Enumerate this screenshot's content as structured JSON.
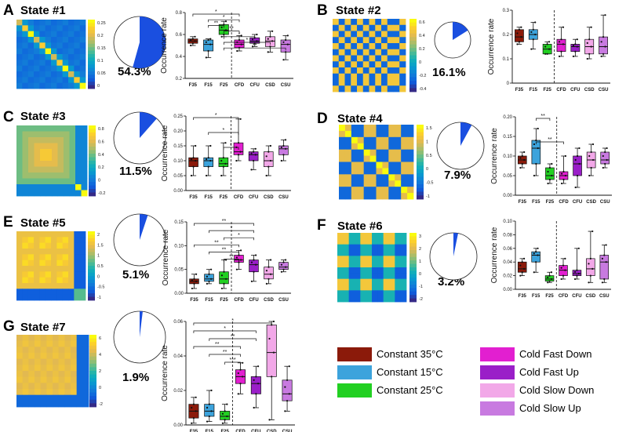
{
  "colors": {
    "F35": "#8b1a0a",
    "F15": "#3ca3dc",
    "F25": "#22d022",
    "CFD": "#e21fd0",
    "CFU": "#9a1fc8",
    "CSD": "#f2a8e8",
    "CSU": "#c87ae0"
  },
  "legend": [
    {
      "code": "F35",
      "label": "Constant  35°C"
    },
    {
      "code": "F15",
      "label": "Constant  15°C"
    },
    {
      "code": "F25",
      "label": "Constant  25°C"
    },
    {
      "code": "CFD",
      "label": "Cold Fast Down"
    },
    {
      "code": "CFU",
      "label": "Cold Fast Up"
    },
    {
      "code": "CSD",
      "label": "Cold Slow Down"
    },
    {
      "code": "CSU",
      "label": "Cold Slow Up"
    }
  ],
  "panels": [
    {
      "letter": "A",
      "title": "State #1",
      "percent_label": "54.3%",
      "fraction": 0.543,
      "colorbar_ticks": [
        "0.25",
        "0.2",
        "0.15",
        "0.1",
        "0.05",
        "0"
      ],
      "chart_data": {
        "type": "box",
        "ylabel": "Occurrence rate",
        "categories": [
          "F35",
          "F15",
          "F25",
          "CFD",
          "CFU",
          "CSD",
          "CSU"
        ],
        "ylim": [
          0.2,
          0.8
        ],
        "yticks": [
          "0.2",
          "0.4",
          "0.6",
          "0.8"
        ],
        "boxes": [
          {
            "min": 0.5,
            "q1": 0.52,
            "median": 0.54,
            "q3": 0.56,
            "max": 0.58
          },
          {
            "min": 0.39,
            "q1": 0.45,
            "median": 0.51,
            "q3": 0.55,
            "max": 0.56
          },
          {
            "min": 0.58,
            "q1": 0.6,
            "median": 0.64,
            "q3": 0.69,
            "max": 0.72
          },
          {
            "min": 0.45,
            "q1": 0.48,
            "median": 0.51,
            "q3": 0.55,
            "max": 0.59
          },
          {
            "min": 0.49,
            "q1": 0.52,
            "median": 0.54,
            "q3": 0.57,
            "max": 0.6
          },
          {
            "min": 0.44,
            "q1": 0.49,
            "median": 0.54,
            "q3": 0.58,
            "max": 0.63
          },
          {
            "min": 0.37,
            "q1": 0.44,
            "median": 0.51,
            "q3": 0.55,
            "max": 0.59
          }
        ],
        "significance": [
          {
            "from": 0,
            "to": 3,
            "label": "*"
          },
          {
            "from": 1,
            "to": 3,
            "label": "*"
          },
          {
            "from": 1,
            "to": 2,
            "label": "**"
          },
          {
            "from": 2,
            "to": 3,
            "label": "**"
          },
          {
            "from": 2,
            "to": 4,
            "label": "*"
          },
          {
            "from": 2,
            "to": 5,
            "label": "*"
          },
          {
            "from": 2,
            "to": 6,
            "label": "**"
          }
        ]
      }
    },
    {
      "letter": "B",
      "title": "State #2",
      "percent_label": "16.1%",
      "fraction": 0.161,
      "colorbar_ticks": [
        "0.6",
        "0.4",
        "0.2",
        "0",
        "-0.2",
        "-0.4"
      ],
      "chart_data": {
        "type": "box",
        "ylabel": "Occurrence rate",
        "categories": [
          "F35",
          "F15",
          "F25",
          "CFD",
          "CFU",
          "CSD",
          "CSU"
        ],
        "ylim": [
          0,
          0.3
        ],
        "yticks": [
          "0",
          "0.1",
          "0.2",
          "0.3"
        ],
        "boxes": [
          {
            "min": 0.16,
            "q1": 0.17,
            "median": 0.19,
            "q3": 0.22,
            "max": 0.23
          },
          {
            "min": 0.14,
            "q1": 0.18,
            "median": 0.2,
            "q3": 0.22,
            "max": 0.25
          },
          {
            "min": 0.12,
            "q1": 0.12,
            "median": 0.14,
            "q3": 0.16,
            "max": 0.17
          },
          {
            "min": 0.11,
            "q1": 0.13,
            "median": 0.16,
            "q3": 0.18,
            "max": 0.23
          },
          {
            "min": 0.11,
            "q1": 0.13,
            "median": 0.15,
            "q3": 0.16,
            "max": 0.18
          },
          {
            "min": 0.1,
            "q1": 0.12,
            "median": 0.15,
            "q3": 0.18,
            "max": 0.23
          },
          {
            "min": 0.11,
            "q1": 0.12,
            "median": 0.15,
            "q3": 0.19,
            "max": 0.28
          }
        ],
        "significance": []
      }
    },
    {
      "letter": "C",
      "title": "State #3",
      "percent_label": "11.5%",
      "fraction": 0.115,
      "colorbar_ticks": [
        "0.8",
        "0.6",
        "0.4",
        "0.2",
        "0",
        "-0.2"
      ],
      "chart_data": {
        "type": "box",
        "ylabel": "Occurrence rate",
        "categories": [
          "F35",
          "F15",
          "F25",
          "CFD",
          "CFU",
          "CSD",
          "CSU"
        ],
        "ylim": [
          0,
          0.25
        ],
        "yticks": [
          "0.00",
          "0.05",
          "0.10",
          "0.15",
          "0.20",
          "0.25"
        ],
        "boxes": [
          {
            "min": 0.05,
            "q1": 0.08,
            "median": 0.1,
            "q3": 0.11,
            "max": 0.15
          },
          {
            "min": 0.05,
            "q1": 0.08,
            "median": 0.1,
            "q3": 0.11,
            "max": 0.15
          },
          {
            "min": 0.05,
            "q1": 0.08,
            "median": 0.09,
            "q3": 0.11,
            "max": 0.16
          },
          {
            "min": 0.1,
            "q1": 0.12,
            "median": 0.13,
            "q3": 0.16,
            "max": 0.24
          },
          {
            "min": 0.07,
            "q1": 0.1,
            "median": 0.12,
            "q3": 0.13,
            "max": 0.14
          },
          {
            "min": 0.05,
            "q1": 0.08,
            "median": 0.1,
            "q3": 0.13,
            "max": 0.15
          },
          {
            "min": 0.1,
            "q1": 0.12,
            "median": 0.14,
            "q3": 0.15,
            "max": 0.17
          }
        ],
        "significance": [
          {
            "from": 0,
            "to": 3,
            "label": "*"
          },
          {
            "from": 1,
            "to": 3,
            "label": "*"
          },
          {
            "from": 2,
            "to": 3,
            "label": "*"
          }
        ]
      }
    },
    {
      "letter": "D",
      "title": "State #4",
      "percent_label": "7.9%",
      "fraction": 0.079,
      "colorbar_ticks": [
        "1.5",
        "1",
        "0.5",
        "0",
        "-0.5",
        "-1"
      ],
      "chart_data": {
        "type": "box",
        "ylabel": "Occurrence rate",
        "categories": [
          "F35",
          "F15",
          "F25",
          "CFD",
          "CFU",
          "CSD",
          "CSU"
        ],
        "ylim": [
          0,
          0.2
        ],
        "yticks": [
          "0.00",
          "0.05",
          "0.10",
          "0.15",
          "0.20"
        ],
        "boxes": [
          {
            "min": 0.07,
            "q1": 0.08,
            "median": 0.09,
            "q3": 0.1,
            "max": 0.11
          },
          {
            "min": 0.05,
            "q1": 0.08,
            "median": 0.12,
            "q3": 0.14,
            "max": 0.17
          },
          {
            "min": 0.03,
            "q1": 0.04,
            "median": 0.05,
            "q3": 0.07,
            "max": 0.08
          },
          {
            "min": 0.03,
            "q1": 0.04,
            "median": 0.05,
            "q3": 0.06,
            "max": 0.1
          },
          {
            "min": 0.02,
            "q1": 0.05,
            "median": 0.08,
            "q3": 0.1,
            "max": 0.12
          },
          {
            "min": 0.05,
            "q1": 0.07,
            "median": 0.09,
            "q3": 0.11,
            "max": 0.13
          },
          {
            "min": 0.07,
            "q1": 0.08,
            "median": 0.09,
            "q3": 0.11,
            "max": 0.12
          }
        ],
        "significance": [
          {
            "from": 1,
            "to": 2,
            "label": "**"
          },
          {
            "from": 1,
            "to": 3,
            "label": "**"
          }
        ]
      }
    },
    {
      "letter": "E",
      "title": "State #5",
      "percent_label": "5.1%",
      "fraction": 0.051,
      "colorbar_ticks": [
        "2",
        "1.5",
        "1",
        "0.5",
        "0",
        "-0.5",
        "-1"
      ],
      "chart_data": {
        "type": "box",
        "ylabel": "Occurrence rate",
        "categories": [
          "F35",
          "F15",
          "F25",
          "CFD",
          "CFU",
          "CSD",
          "CSU"
        ],
        "ylim": [
          0,
          0.15
        ],
        "yticks": [
          "0.00",
          "0.05",
          "0.10",
          "0.15"
        ],
        "boxes": [
          {
            "min": 0.01,
            "q1": 0.02,
            "median": 0.025,
            "q3": 0.03,
            "max": 0.04
          },
          {
            "min": 0.02,
            "q1": 0.025,
            "median": 0.03,
            "q3": 0.04,
            "max": 0.05
          },
          {
            "min": 0.01,
            "q1": 0.02,
            "median": 0.03,
            "q3": 0.045,
            "max": 0.07
          },
          {
            "min": 0.05,
            "q1": 0.065,
            "median": 0.07,
            "q3": 0.08,
            "max": 0.09
          },
          {
            "min": 0.025,
            "q1": 0.045,
            "median": 0.06,
            "q3": 0.07,
            "max": 0.08
          },
          {
            "min": 0.02,
            "q1": 0.03,
            "median": 0.04,
            "q3": 0.055,
            "max": 0.07
          },
          {
            "min": 0.045,
            "q1": 0.05,
            "median": 0.055,
            "q3": 0.065,
            "max": 0.07
          }
        ],
        "significance": [
          {
            "from": 0,
            "to": 4,
            "label": "**"
          },
          {
            "from": 1,
            "to": 4,
            "label": "*"
          },
          {
            "from": 2,
            "to": 4,
            "label": "*"
          },
          {
            "from": 0,
            "to": 3,
            "label": "**"
          },
          {
            "from": 1,
            "to": 3,
            "label": "**"
          },
          {
            "from": 2,
            "to": 3,
            "label": "**"
          }
        ]
      }
    },
    {
      "letter": "F",
      "title": "State #6",
      "percent_label": "3.2%",
      "fraction": 0.032,
      "colorbar_ticks": [
        "3",
        "2",
        "1",
        "0",
        "-1",
        "-2"
      ],
      "chart_data": {
        "type": "box",
        "ylabel": "Occurrence rate",
        "categories": [
          "F35",
          "F15",
          "F25",
          "CFD",
          "CFU",
          "CSD",
          "CSU"
        ],
        "ylim": [
          0,
          0.1
        ],
        "yticks": [
          "0.00",
          "0.02",
          "0.04",
          "0.06",
          "0.08",
          "0.10"
        ],
        "boxes": [
          {
            "min": 0.02,
            "q1": 0.025,
            "median": 0.03,
            "q3": 0.04,
            "max": 0.045
          },
          {
            "min": 0.025,
            "q1": 0.04,
            "median": 0.05,
            "q3": 0.055,
            "max": 0.06
          },
          {
            "min": 0.01,
            "q1": 0.012,
            "median": 0.015,
            "q3": 0.02,
            "max": 0.025
          },
          {
            "min": 0.015,
            "q1": 0.02,
            "median": 0.028,
            "q3": 0.035,
            "max": 0.045
          },
          {
            "min": 0.015,
            "q1": 0.02,
            "median": 0.023,
            "q3": 0.028,
            "max": 0.06
          },
          {
            "min": 0.01,
            "q1": 0.02,
            "median": 0.03,
            "q3": 0.045,
            "max": 0.085
          },
          {
            "min": 0.01,
            "q1": 0.015,
            "median": 0.04,
            "q3": 0.05,
            "max": 0.065
          }
        ],
        "significance": []
      }
    },
    {
      "letter": "G",
      "title": "State #7",
      "percent_label": "1.9%",
      "fraction": 0.019,
      "colorbar_ticks": [
        "6",
        "4",
        "2",
        "0",
        "-2"
      ],
      "chart_data": {
        "type": "box",
        "ylabel": "Occurrence rate",
        "categories": [
          "F35",
          "F15",
          "F25",
          "CFD",
          "CFU",
          "CSD",
          "CSU"
        ],
        "ylim": [
          0,
          0.06
        ],
        "yticks": [
          "0.00",
          "0.02",
          "0.04",
          "0.06"
        ],
        "boxes": [
          {
            "min": 0.001,
            "q1": 0.004,
            "median": 0.008,
            "q3": 0.012,
            "max": 0.016
          },
          {
            "min": 0.002,
            "q1": 0.005,
            "median": 0.008,
            "q3": 0.012,
            "max": 0.02
          },
          {
            "min": 0.001,
            "q1": 0.003,
            "median": 0.005,
            "q3": 0.008,
            "max": 0.012
          },
          {
            "min": 0.018,
            "q1": 0.024,
            "median": 0.028,
            "q3": 0.032,
            "max": 0.036
          },
          {
            "min": 0.01,
            "q1": 0.018,
            "median": 0.024,
            "q3": 0.028,
            "max": 0.034
          },
          {
            "min": 0.003,
            "q1": 0.028,
            "median": 0.042,
            "q3": 0.058,
            "max": 0.06
          },
          {
            "min": 0.008,
            "q1": 0.014,
            "median": 0.018,
            "q3": 0.026,
            "max": 0.034
          }
        ],
        "significance": [
          {
            "from": 0,
            "to": 5,
            "label": "*"
          },
          {
            "from": 0,
            "to": 4,
            "label": "*"
          },
          {
            "from": 1,
            "to": 4,
            "label": "**"
          },
          {
            "from": 0,
            "to": 3,
            "label": "**"
          },
          {
            "from": 1,
            "to": 3,
            "label": "**"
          },
          {
            "from": 2,
            "to": 3,
            "label": "***"
          }
        ]
      }
    }
  ]
}
